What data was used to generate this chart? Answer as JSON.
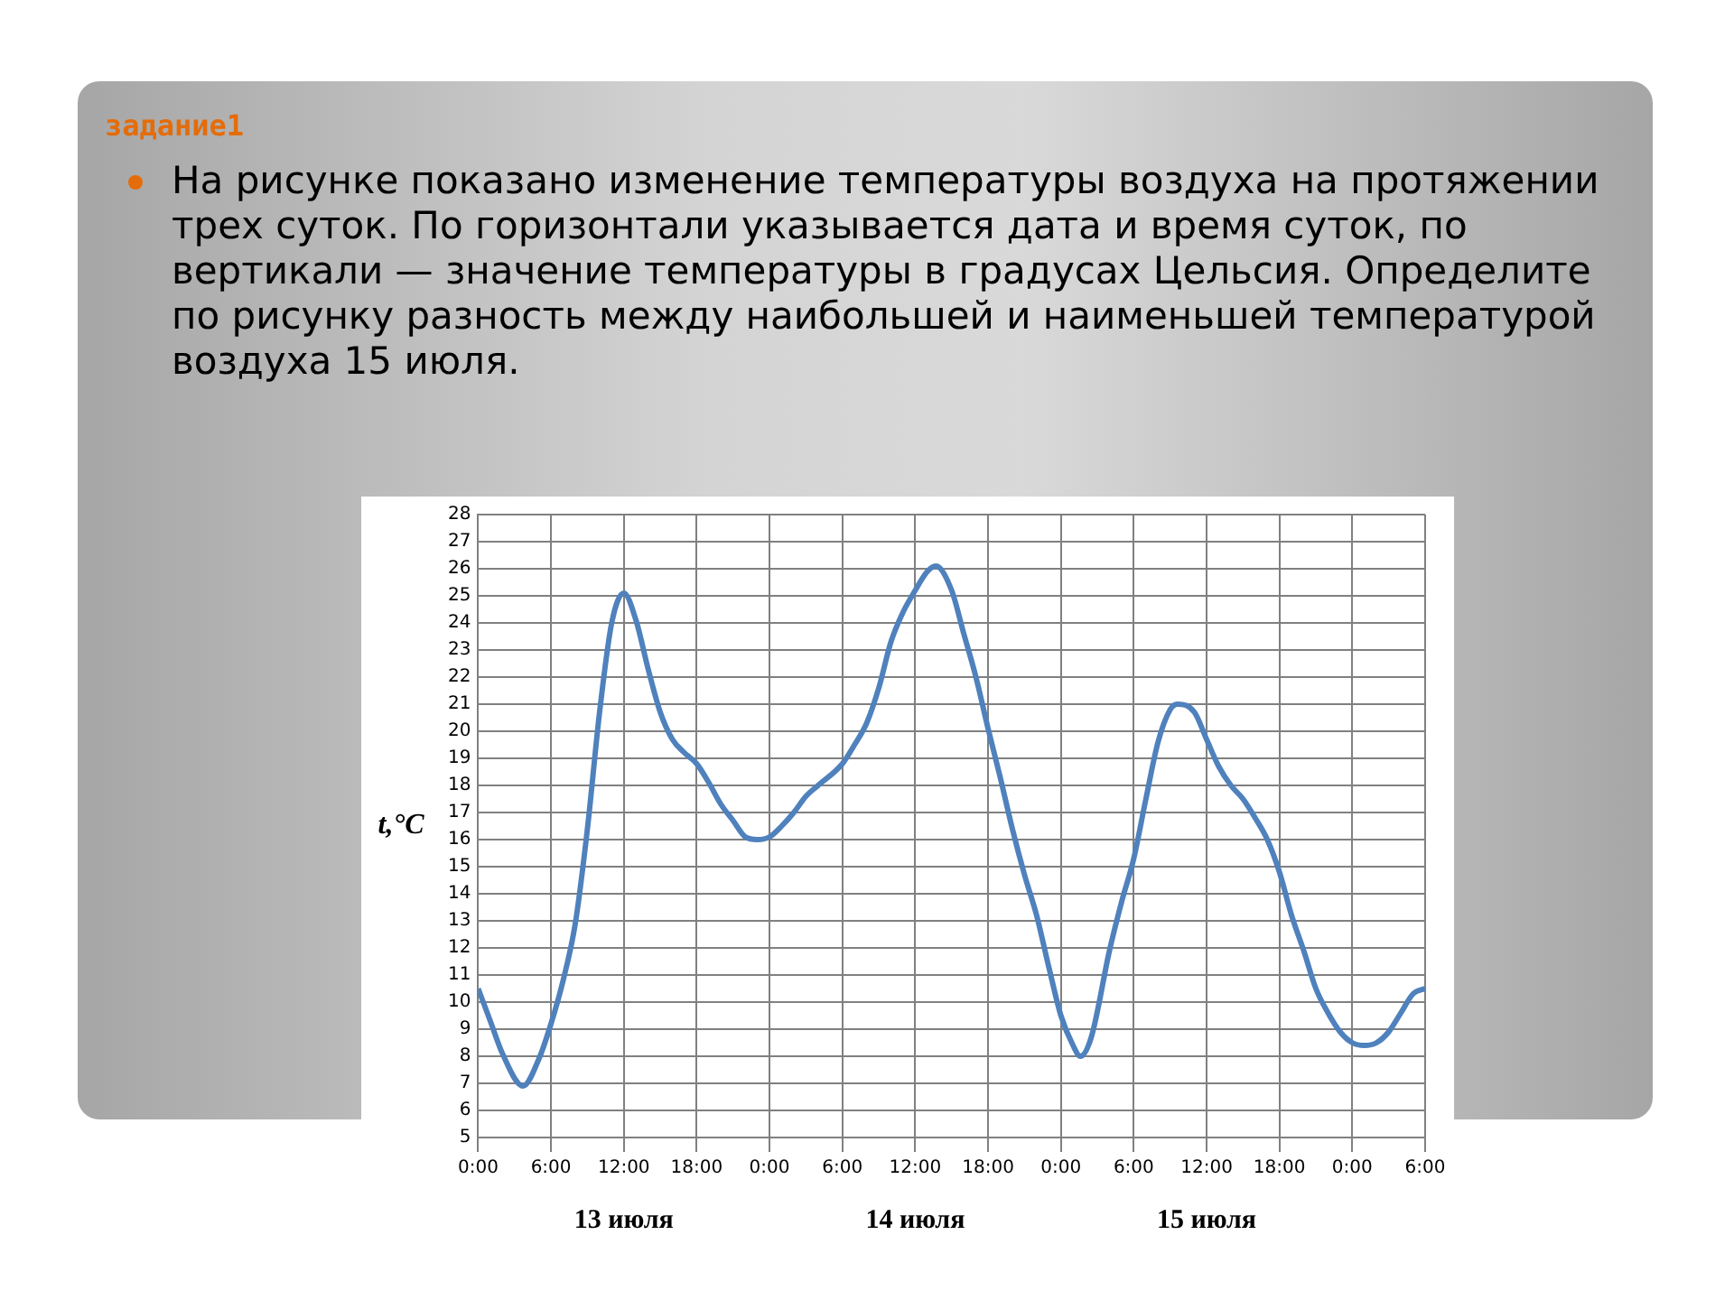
{
  "chart_data": {
    "type": "line",
    "title": "задание1",
    "subtitle": "На рисунке показано изменение температуры воздуха на протяжении трех суток. По горизонтали указывается дата и время суток, по вертикали — значение температуры в градусах Цельсия. Определите по рисунку разность между наибольшей и наименьшей температурой воздуха 15 июля.",
    "ylabel": "t,°C",
    "x": [
      "--07-13T00:00",
      "--07-13T01:00",
      "--07-13T02:00",
      "--07-13T03:42",
      "--07-13T05:00",
      "--07-13T06:00",
      "--07-13T07:00",
      "--07-13T08:00",
      "--07-13T09:00",
      "--07-13T10:00",
      "--07-13T11:00",
      "--07-13T12:00",
      "--07-13T13:00",
      "--07-13T14:00",
      "--07-13T15:00",
      "--07-13T16:00",
      "--07-13T17:00",
      "--07-13T18:00",
      "--07-13T19:00",
      "--07-13T20:00",
      "--07-13T21:00",
      "--07-13T22:00",
      "--07-13T23:00",
      "--07-14T00:00",
      "--07-14T01:00",
      "--07-14T02:00",
      "--07-14T03:00",
      "--07-14T04:00",
      "--07-14T06:00",
      "--07-14T07:00",
      "--07-14T08:00",
      "--07-14T09:00",
      "--07-14T10:00",
      "--07-14T11:00",
      "--07-14T12:00",
      "--07-14T13:00",
      "--07-14T13:42",
      "--07-14T15:00",
      "--07-14T16:00",
      "--07-14T17:00",
      "--07-14T18:00",
      "--07-14T19:00",
      "--07-14T20:00",
      "--07-14T21:00",
      "--07-14T22:00",
      "--07-14T23:00",
      "--07-15T00:00",
      "--07-15T01:00",
      "--07-15T01:36",
      "--07-15T02:30",
      "--07-15T04:00",
      "--07-15T05:00",
      "--07-15T06:00",
      "--07-15T07:00",
      "--07-15T08:00",
      "--07-15T09:00",
      "--07-15T09:36",
      "--07-15T11:00",
      "--07-15T12:00",
      "--07-15T13:00",
      "--07-15T14:00",
      "--07-15T15:00",
      "--07-15T16:00",
      "--07-15T17:00",
      "--07-15T18:00",
      "--07-15T19:00",
      "--07-15T20:00",
      "--07-15T21:00",
      "--07-15T22:00",
      "--07-15T23:00",
      "--07-16T00:00",
      "--07-16T01:00",
      "--07-16T02:00",
      "--07-16T03:00",
      "--07-16T04:00",
      "--07-16T05:00",
      "--07-16T06:00"
    ],
    "series": [
      {
        "color": "#4f81bd",
        "values": [
          10.5,
          9.3,
          8.1,
          6.9,
          7.9,
          9.2,
          10.8,
          12.9,
          16.4,
          20.7,
          24,
          25.1,
          24.1,
          22.3,
          20.7,
          19.7,
          19.2,
          18.8,
          18.1,
          17.3,
          16.7,
          16.1,
          16,
          16.1,
          16.5,
          17,
          17.6,
          18,
          18.8,
          19.5,
          20.3,
          21.6,
          23.3,
          24.4,
          25.2,
          25.9,
          26.1,
          25.2,
          23.6,
          22,
          20.1,
          18.3,
          16.4,
          14.7,
          13.2,
          11.3,
          9.5,
          8.4,
          8,
          8.7,
          11.9,
          13.7,
          15.3,
          17.5,
          19.6,
          20.8,
          21,
          20.7,
          19.7,
          18.7,
          18,
          17.5,
          16.8,
          16,
          14.8,
          13.2,
          11.9,
          10.5,
          9.6,
          8.9,
          8.5,
          8.4,
          8.5,
          8.9,
          9.6,
          10.3,
          10.5
        ]
      }
    ],
    "xlim": [
      "--07-13T00:00",
      "--07-16T06:00"
    ],
    "xticks": [
      {
        "value": "--07-13T00:00",
        "label": "0:00"
      },
      {
        "value": "--07-13T06:00",
        "label": "6:00"
      },
      {
        "value": "--07-13T12:00",
        "label": "12:00"
      },
      {
        "value": "--07-13T18:00",
        "label": "18:00"
      },
      {
        "value": "--07-14T00:00",
        "label": "0:00"
      },
      {
        "value": "--07-14T06:00",
        "label": "6:00"
      },
      {
        "value": "--07-14T12:00",
        "label": "12:00"
      },
      {
        "value": "--07-14T18:00",
        "label": "18:00"
      },
      {
        "value": "--07-15T00:00",
        "label": "0:00"
      },
      {
        "value": "--07-15T06:00",
        "label": "6:00"
      },
      {
        "value": "--07-15T12:00",
        "label": "12:00"
      },
      {
        "value": "--07-15T18:00",
        "label": "18:00"
      },
      {
        "value": "--07-16T00:00",
        "label": "0:00"
      },
      {
        "value": "--07-16T06:00",
        "label": "6:00"
      }
    ],
    "ylim": [
      5,
      28
    ],
    "yticks": [
      5,
      6,
      7,
      8,
      9,
      10,
      11,
      12,
      13,
      14,
      15,
      16,
      17,
      18,
      19,
      20,
      21,
      22,
      23,
      24,
      25,
      26,
      27,
      28
    ],
    "annotations": [
      "13 июля",
      "14 июля",
      "15 июля"
    ],
    "grid": true,
    "legend": false,
    "marker": "none",
    "line_style": "solid"
  }
}
